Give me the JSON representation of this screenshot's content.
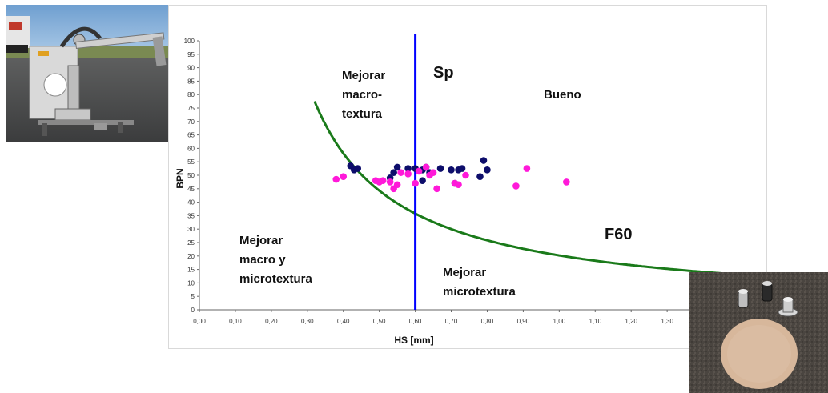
{
  "chart_data": {
    "type": "scatter",
    "xlabel": "HS [mm]",
    "ylabel": "BPN",
    "xlim": [
      0,
      1.4
    ],
    "ylim": [
      0,
      100
    ],
    "x_ticks": [
      "0,00",
      "0,10",
      "0,20",
      "0,30",
      "0,40",
      "0,50",
      "0,60",
      "0,70",
      "0,80",
      "0,90",
      "1,00",
      "1,10",
      "1,20",
      "1,30"
    ],
    "y_ticks": [
      "0",
      "5",
      "10",
      "15",
      "20",
      "25",
      "30",
      "35",
      "40",
      "45",
      "50",
      "55",
      "60",
      "65",
      "70",
      "75",
      "80",
      "85",
      "90",
      "95",
      "100"
    ],
    "grid": false,
    "series": [
      {
        "color": "#0d0d6b",
        "points": [
          [
            0.42,
            53.5
          ],
          [
            0.43,
            52
          ],
          [
            0.44,
            52.5
          ],
          [
            0.53,
            49
          ],
          [
            0.54,
            51
          ],
          [
            0.55,
            53
          ],
          [
            0.58,
            52.5
          ],
          [
            0.6,
            52.5
          ],
          [
            0.62,
            52
          ],
          [
            0.62,
            48
          ],
          [
            0.63,
            53
          ],
          [
            0.64,
            51
          ],
          [
            0.67,
            52.5
          ],
          [
            0.7,
            52
          ],
          [
            0.71,
            47
          ],
          [
            0.72,
            52
          ],
          [
            0.73,
            52.5
          ],
          [
            0.78,
            49.5
          ],
          [
            0.79,
            55.5
          ],
          [
            0.8,
            52
          ]
        ]
      },
      {
        "color": "#ff19d9",
        "points": [
          [
            0.38,
            48.5
          ],
          [
            0.4,
            49.5
          ],
          [
            0.49,
            48
          ],
          [
            0.5,
            47.5
          ],
          [
            0.51,
            48
          ],
          [
            0.53,
            47.5
          ],
          [
            0.54,
            45
          ],
          [
            0.55,
            46.5
          ],
          [
            0.56,
            51
          ],
          [
            0.58,
            50.5
          ],
          [
            0.6,
            47
          ],
          [
            0.61,
            51.5
          ],
          [
            0.63,
            53
          ],
          [
            0.64,
            50
          ],
          [
            0.65,
            51
          ],
          [
            0.66,
            45
          ],
          [
            0.71,
            47
          ],
          [
            0.72,
            46.5
          ],
          [
            0.74,
            50
          ],
          [
            0.88,
            46
          ],
          [
            0.91,
            52.5
          ],
          [
            1.02,
            47.5
          ]
        ]
      }
    ],
    "threshold_line": {
      "x": 0.6,
      "color": "#0000ff",
      "label": "Sp"
    },
    "curve": {
      "label": "F60",
      "color": "#1a7a1a",
      "k": 18.6,
      "c": 0.08,
      "x_start": 0.32,
      "x_end": 1.5
    },
    "annotations": {
      "macro": [
        "Mejorar",
        "macro-",
        "textura"
      ],
      "bueno": "Bueno",
      "both": [
        "Mejorar",
        "macro y",
        "microtextura"
      ],
      "micro": [
        "Mejorar",
        "microtextura"
      ],
      "sp": "Sp",
      "f60": "F60"
    }
  },
  "photos": {
    "left": "pendulum-tester-photo",
    "right": "sand-patch-photo"
  }
}
